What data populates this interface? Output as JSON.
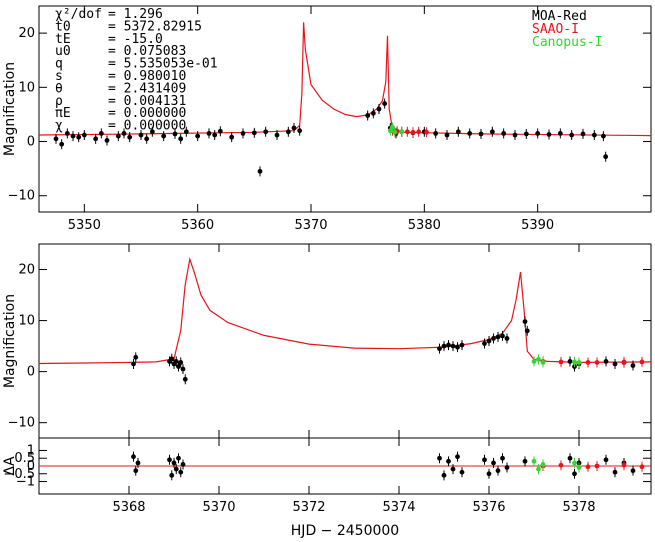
{
  "chart_data": [
    {
      "type": "line",
      "panel": "top",
      "ylabel": "Magnification",
      "xlim": [
        5346,
        5400
      ],
      "ylim": [
        -13,
        25
      ],
      "xticks": [
        5350,
        5360,
        5370,
        5380,
        5390
      ],
      "xtick_labels": [
        "5350",
        "5360",
        "5370",
        "5380",
        "5390"
      ],
      "yticks": [
        -10,
        0,
        10,
        20
      ],
      "ytick_labels": [
        "−10",
        "0",
        "10",
        "20"
      ],
      "grid": false,
      "legend_placement": "top-right",
      "legend": [
        {
          "label": "MOA-Red",
          "color": "#000000"
        },
        {
          "label": "SAAO-I",
          "color": "#e8141c"
        },
        {
          "label": "Canopus-I",
          "color": "#33d633"
        }
      ],
      "parameters": [
        {
          "label": "χ²/dof",
          "value": "= 1.296"
        },
        {
          "label": "t0",
          "value": "= 5372.82915"
        },
        {
          "label": "tE",
          "value": "= -15.0"
        },
        {
          "label": "u0",
          "value": "= 0.075083"
        },
        {
          "label": "q",
          "value": "= 5.535053e-01"
        },
        {
          "label": "s",
          "value": "= 0.980010"
        },
        {
          "label": "θ",
          "value": "= 2.431409"
        },
        {
          "label": "ρ",
          "value": "= 0.004131"
        },
        {
          "label": "πE",
          "value": "= 0.000000"
        },
        {
          "label": "χ",
          "value": "= 0.000000"
        }
      ],
      "model_curve": {
        "name": "model",
        "color": "#e8141c",
        "x": [
          5346,
          5355,
          5365,
          5368.5,
          5369.0,
          5369.2,
          5369.35,
          5369.5,
          5370,
          5371,
          5372,
          5373,
          5374,
          5375,
          5375.8,
          5376.3,
          5376.6,
          5376.75,
          5376.9,
          5377.2,
          5378,
          5385,
          5400
        ],
        "y": [
          1.2,
          1.4,
          1.7,
          2.0,
          3.0,
          9.0,
          22.0,
          17.0,
          10.5,
          7.6,
          6.0,
          5.0,
          4.6,
          4.9,
          6.0,
          7.5,
          11.0,
          19.5,
          6.0,
          2.2,
          1.7,
          1.4,
          1.1
        ]
      },
      "series": [
        {
          "name": "MOA-Red",
          "color": "#000000",
          "x": [
            5347.5,
            5348,
            5348.5,
            5349,
            5349.5,
            5350,
            5351,
            5351.5,
            5352,
            5353,
            5353.5,
            5354,
            5355,
            5355.5,
            5356,
            5357,
            5358,
            5358.5,
            5359,
            5360,
            5361,
            5361.5,
            5362,
            5363,
            5364,
            5365,
            5365.5,
            5366,
            5367,
            5368,
            5368.5,
            5369,
            5375,
            5375.5,
            5376,
            5376.5,
            5377,
            5377.5,
            5378,
            5379,
            5380,
            5381,
            5382,
            5383,
            5384,
            5385,
            5386,
            5387,
            5388,
            5389,
            5390,
            5391,
            5392,
            5393,
            5394,
            5395,
            5395.8,
            5396
          ],
          "y": [
            0.5,
            -0.5,
            1.5,
            1.0,
            0.8,
            1.2,
            0.5,
            1.5,
            0.2,
            1.0,
            1.5,
            0.8,
            1.2,
            0.5,
            1.8,
            1.0,
            1.4,
            0.5,
            1.8,
            1.0,
            1.5,
            1.2,
            1.9,
            0.8,
            1.5,
            1.6,
            -5.5,
            1.8,
            1.2,
            1.8,
            2.5,
            2.0,
            4.8,
            5.2,
            6.0,
            7.0,
            2.5,
            1.5,
            1.8,
            1.6,
            1.8,
            1.5,
            1.2,
            1.8,
            1.5,
            1.4,
            1.8,
            1.5,
            1.2,
            1.4,
            1.5,
            1.3,
            1.5,
            1.2,
            1.4,
            1.2,
            1.0,
            -2.8
          ]
        },
        {
          "name": "SAAO-I",
          "color": "#e8141c",
          "x": [
            5377.2,
            5377.6,
            5378.0,
            5378.5,
            5379.0,
            5379.5,
            5380.2
          ],
          "y": [
            2.0,
            1.9,
            1.8,
            1.8,
            1.7,
            1.8,
            1.7
          ]
        },
        {
          "name": "Canopus-I",
          "color": "#33d633",
          "x": [
            5377.0,
            5377.2,
            5377.4,
            5378.0
          ],
          "y": [
            2.0,
            2.6,
            1.7,
            1.8
          ]
        }
      ]
    },
    {
      "type": "line",
      "panel": "middle",
      "ylabel": "Magnification",
      "xlim": [
        5366,
        5379.6
      ],
      "ylim": [
        -13,
        25
      ],
      "yticks": [
        -10,
        0,
        10,
        20
      ],
      "ytick_labels": [
        "−10",
        "0",
        "10",
        "20"
      ],
      "grid": false,
      "model_curve": {
        "name": "model",
        "color": "#e8141c",
        "x": [
          5366,
          5367,
          5368,
          5368.6,
          5369.0,
          5369.15,
          5369.25,
          5369.35,
          5369.45,
          5369.6,
          5369.8,
          5370.2,
          5371,
          5372,
          5373,
          5374,
          5375,
          5375.6,
          5376.0,
          5376.3,
          5376.5,
          5376.6,
          5376.7,
          5376.78,
          5376.85,
          5377.0,
          5377.3,
          5378,
          5379.6
        ],
        "y": [
          1.6,
          1.7,
          1.8,
          1.9,
          2.5,
          8.0,
          17.0,
          22.0,
          19.5,
          15.0,
          12.0,
          9.6,
          7.1,
          5.4,
          4.6,
          4.5,
          4.8,
          5.5,
          6.3,
          7.5,
          10.0,
          14.0,
          19.5,
          12.0,
          4.0,
          2.4,
          2.0,
          1.8,
          1.9
        ]
      },
      "series": [
        {
          "name": "MOA-Red",
          "color": "#000000",
          "x": [
            5368.1,
            5368.15,
            5368.9,
            5368.95,
            5369.0,
            5369.05,
            5369.1,
            5369.15,
            5369.2,
            5369.25,
            5374.9,
            5375.0,
            5375.1,
            5375.2,
            5375.3,
            5375.4,
            5375.9,
            5376.0,
            5376.1,
            5376.2,
            5376.3,
            5376.4,
            5376.8,
            5376.85,
            5377.8,
            5377.9,
            5378.0,
            5378.6,
            5378.8,
            5379.0,
            5379.2
          ],
          "y": [
            1.5,
            2.8,
            2.0,
            2.5,
            1.5,
            2.0,
            1.0,
            1.8,
            0.5,
            -1.5,
            4.5,
            5.0,
            5.2,
            5.0,
            4.8,
            5.2,
            5.5,
            6.0,
            6.5,
            6.8,
            7.0,
            6.5,
            9.8,
            8.0,
            2.0,
            1.0,
            1.5,
            2.0,
            1.5,
            1.8,
            1.2
          ]
        },
        {
          "name": "SAAO-I",
          "color": "#e8141c",
          "x": [
            5377.2,
            5377.6,
            5378.2,
            5378.4,
            5379.0,
            5379.4
          ],
          "y": [
            2.0,
            1.9,
            1.8,
            1.8,
            1.9,
            1.9
          ]
        },
        {
          "name": "Canopus-I",
          "color": "#33d633",
          "x": [
            5377.0,
            5377.1,
            5377.2,
            5377.9,
            5378.0
          ],
          "y": [
            2.0,
            2.4,
            1.8,
            1.9,
            1.8
          ]
        }
      ]
    },
    {
      "type": "scatter",
      "panel": "residual",
      "ylabel": "ΔA",
      "xlabel": "HJD − 2450000",
      "xlim": [
        5366,
        5379.6
      ],
      "ylim": [
        -1.8,
        1.8
      ],
      "xticks": [
        5368,
        5370,
        5372,
        5374,
        5376,
        5378
      ],
      "xtick_labels": [
        "5368",
        "5370",
        "5372",
        "5374",
        "5376",
        "5378"
      ],
      "yticks": [
        -1,
        -0.5,
        0,
        0.5,
        1
      ],
      "ytick_labels": [
        "−1",
        "−0.5",
        "0",
        "0.5",
        "1"
      ],
      "grid": false,
      "zero_line_color": "#e8141c",
      "series": [
        {
          "name": "MOA-Red",
          "color": "#000000",
          "x": [
            5368.1,
            5368.15,
            5368.2,
            5368.9,
            5368.95,
            5369.0,
            5369.05,
            5369.1,
            5369.15,
            5369.2,
            5374.9,
            5375.0,
            5375.1,
            5375.2,
            5375.3,
            5375.4,
            5375.9,
            5376.0,
            5376.1,
            5376.2,
            5376.3,
            5376.4,
            5376.8,
            5377.8,
            5377.9,
            5378.0,
            5378.6,
            5378.8,
            5379.0,
            5379.2
          ],
          "y": [
            0.6,
            -0.3,
            0.2,
            0.4,
            -0.6,
            0.2,
            -0.2,
            0.5,
            -0.4,
            0.1,
            0.5,
            -0.6,
            0.3,
            -0.2,
            0.6,
            -0.4,
            0.4,
            -0.5,
            0.2,
            -0.3,
            0.5,
            -0.1,
            0.3,
            0.5,
            -0.5,
            0.2,
            0.4,
            -0.4,
            0.2,
            -0.3
          ]
        },
        {
          "name": "SAAO-I",
          "color": "#e8141c",
          "x": [
            5377.2,
            5377.6,
            5378.2,
            5378.4,
            5379.0,
            5379.4
          ],
          "y": [
            0.0,
            0.05,
            -0.05,
            0.0,
            0.05,
            -0.05
          ]
        },
        {
          "name": "Canopus-I",
          "color": "#33d633",
          "x": [
            5377.0,
            5377.1,
            5377.2,
            5377.9,
            5378.0
          ],
          "y": [
            0.3,
            -0.2,
            0.1,
            0.2,
            -0.1
          ]
        }
      ]
    }
  ]
}
